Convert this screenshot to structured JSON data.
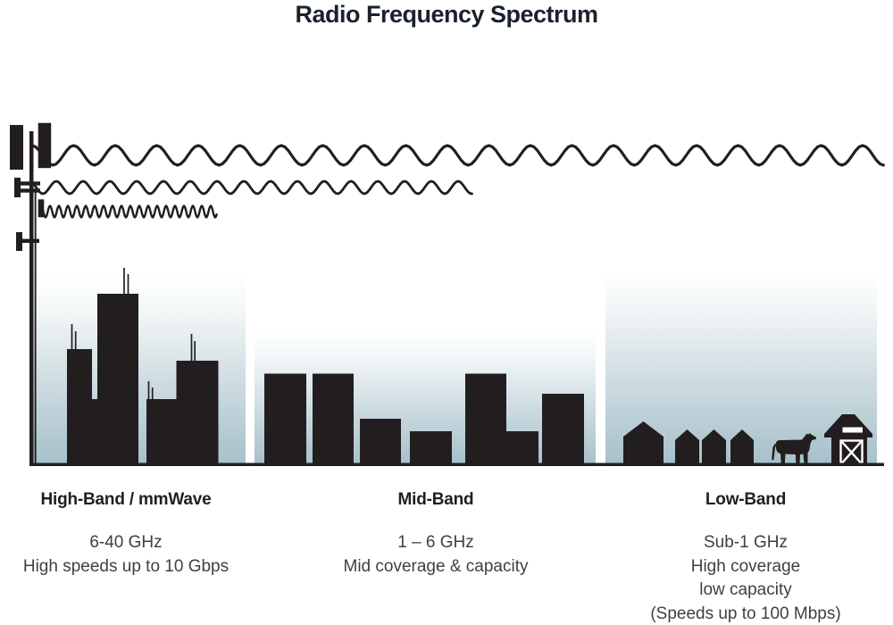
{
  "title": "Radio Frequency Spectrum",
  "bands": [
    {
      "id": "high-band",
      "label": "High-Band / mmWave",
      "lines": [
        "6-40 GHz",
        "High speeds up to 10 Gbps"
      ],
      "scene": "city-skyline",
      "wave": "high-frequency-short-reach"
    },
    {
      "id": "mid-band",
      "label": "Mid-Band",
      "lines": [
        "1 – 6 GHz",
        "Mid coverage & capacity"
      ],
      "scene": "midrise-skyline",
      "wave": "mid-frequency-medium-reach"
    },
    {
      "id": "low-band",
      "label": "Low-Band",
      "lines": [
        "Sub-1 GHz",
        "High coverage",
        "low capacity",
        "(Speeds up to 100 Mbps)"
      ],
      "scene": "rural-houses-cow-barn",
      "wave": "low-frequency-long-reach"
    }
  ],
  "icons": [
    "cell-tower-icon",
    "house-icon",
    "cow-icon",
    "barn-icon",
    "building-icon"
  ],
  "colors": {
    "ink": "#221e1f",
    "title_text": "#1a222c",
    "body_text": "#404040",
    "sky_gradient_bottom": "#a6c0ca",
    "background": "#ffffff"
  }
}
